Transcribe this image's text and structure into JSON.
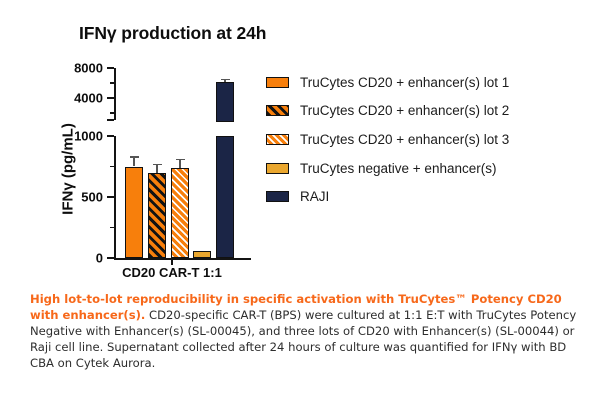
{
  "colors": {
    "bar_orange": "#F77F0C",
    "bar_tan": "#EAA72F",
    "bar_navy": "#1B2546",
    "caption_orange": "#F7681A",
    "axis_black": "#141414",
    "error_bar_gray": "#555555"
  },
  "chart": {
    "title": "IFNγ production at 24h",
    "y_axis_label": "IFNγ (pg/mL)",
    "x_category": "CD20 CAR-T 1:1"
  },
  "legend": [
    {
      "label": "TruCytes CD20 + enhancer(s) lot 1",
      "pattern": "orange",
      "swatch": "orange-solid-swatch"
    },
    {
      "label": "TruCytes CD20 + enhancer(s) lot 2",
      "pattern": "hatch-black",
      "swatch": "orange-black-hatch-swatch"
    },
    {
      "label": "TruCytes CD20 + enhancer(s) lot 3",
      "pattern": "hatch-white",
      "swatch": "orange-white-hatch-swatch"
    },
    {
      "label": "TruCytes negative + enhancer(s)",
      "pattern": "tan",
      "swatch": "tan-solid-swatch"
    },
    {
      "label": "RAJI",
      "pattern": "navy",
      "swatch": "navy-solid-swatch"
    }
  ],
  "chart_data": {
    "type": "bar",
    "title": "IFNγ production at 24h",
    "xlabel": "CD20 CAR-T 1:1",
    "ylabel": "IFNγ (pg/mL)",
    "categories": [
      "TruCytes CD20 + enhancer(s) lot 1",
      "TruCytes CD20 + enhancer(s) lot 2",
      "TruCytes CD20 + enhancer(s) lot 3",
      "TruCytes negative + enhancer(s)",
      "RAJI"
    ],
    "values": [
      750,
      700,
      740,
      55,
      6100
    ],
    "errors": [
      70,
      60,
      60,
      0,
      150
    ],
    "grid": false,
    "legend_position": "right",
    "y_axis_break": {
      "lower_range": [
        0,
        1000
      ],
      "upper_range_shown": [
        2000,
        8000
      ],
      "lower_ticks": [
        0,
        500,
        1000
      ],
      "lower_minor_ticks": [
        250,
        750
      ],
      "upper_ticks": [
        4000,
        8000
      ],
      "upper_minor_ticks": [
        2000,
        6000
      ]
    }
  },
  "caption": {
    "highlight": "High lot-to-lot reproducibility in specific activation with TruCytes™ Potency CD20 with enhancer(s).",
    "body": " CD20-specific CAR-T (BPS) were cultured at 1:1 E:T with TruCytes Potency Negative with Enhancer(s) (SL-00045), and three lots of CD20 with Enhancer(s) (SL-00044) or Raji cell line. Supernatant collected after 24 hours of culture was quantified for IFNγ with BD CBA on Cytek Aurora."
  }
}
